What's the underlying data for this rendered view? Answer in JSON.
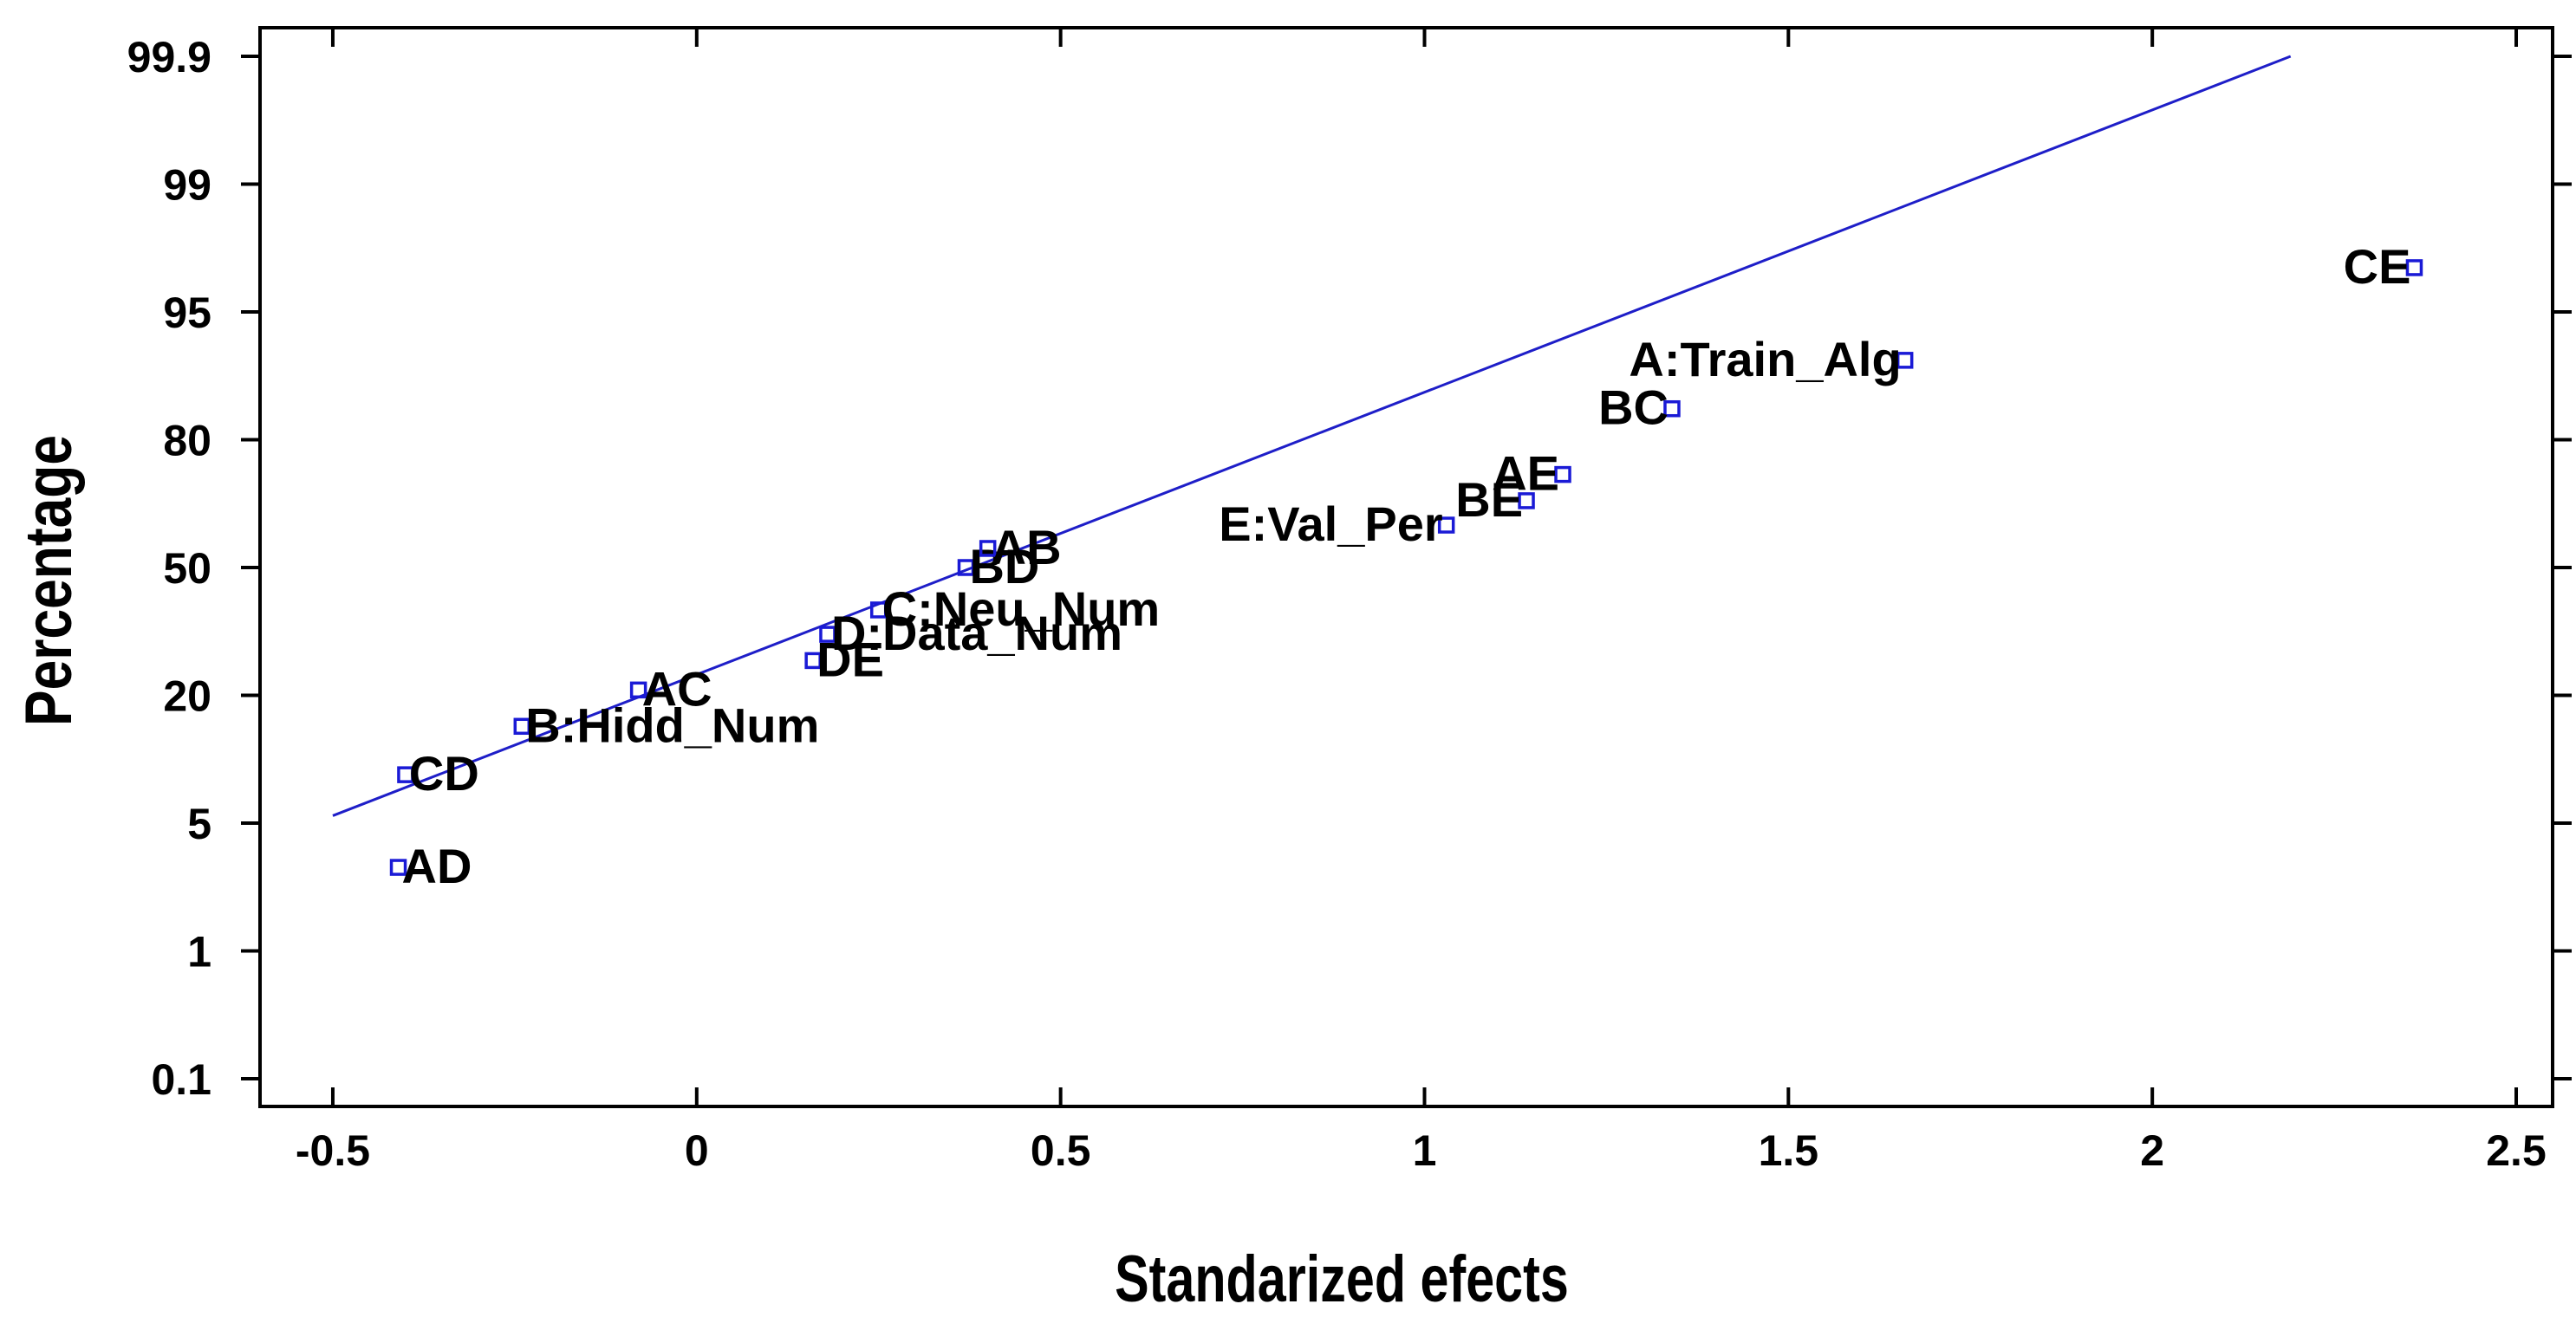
{
  "chart_data": {
    "type": "scatter",
    "title": "",
    "xlabel": "Standarized efects",
    "ylabel": "Percentage",
    "xlim": [
      -0.6,
      2.55
    ],
    "x_ticks": [
      -0.5,
      0,
      0.5,
      1,
      1.5,
      2,
      2.5
    ],
    "x_tick_labels": [
      "-0.5",
      "0",
      "0.5",
      "1",
      "1.5",
      "2",
      "2.5"
    ],
    "y_tick_labels": [
      "99.9",
      "99",
      "95",
      "80",
      "50",
      "20",
      "5",
      "1",
      "0.1"
    ],
    "y_scale": "normal-probability",
    "grid": false,
    "points": [
      {
        "name": "AD",
        "x": -0.41,
        "pct": 3.0
      },
      {
        "name": "CD",
        "x": -0.4,
        "pct": 9.0
      },
      {
        "name": "B:Hidd_Num",
        "x": -0.24,
        "pct": 15.0
      },
      {
        "name": "AC",
        "x": -0.08,
        "pct": 21.0
      },
      {
        "name": "DE",
        "x": 0.16,
        "pct": 27.0
      },
      {
        "name": "D:Data_Num",
        "x": 0.18,
        "pct": 33.0
      },
      {
        "name": "C:Neu_Num",
        "x": 0.25,
        "pct": 39.0
      },
      {
        "name": "BD",
        "x": 0.37,
        "pct": 50.0
      },
      {
        "name": "AB",
        "x": 0.4,
        "pct": 55.0
      },
      {
        "name": "E:Val_Per",
        "x": 1.03,
        "pct": 61.0
      },
      {
        "name": "BE",
        "x": 1.14,
        "pct": 67.0
      },
      {
        "name": "AE",
        "x": 1.19,
        "pct": 73.0
      },
      {
        "name": "BC",
        "x": 1.34,
        "pct": 85.0
      },
      {
        "name": "A:Train_Alg",
        "x": 1.66,
        "pct": 91.0
      },
      {
        "name": "CE",
        "x": 2.36,
        "pct": 97.0
      }
    ],
    "fit_line": {
      "x1": -0.5,
      "pct1": 5.5,
      "x2": 2.19,
      "pct2": 99.9
    },
    "colors": {
      "points": "#1a1ad6",
      "line": "#1e1ec8",
      "axes": "#000000"
    }
  }
}
